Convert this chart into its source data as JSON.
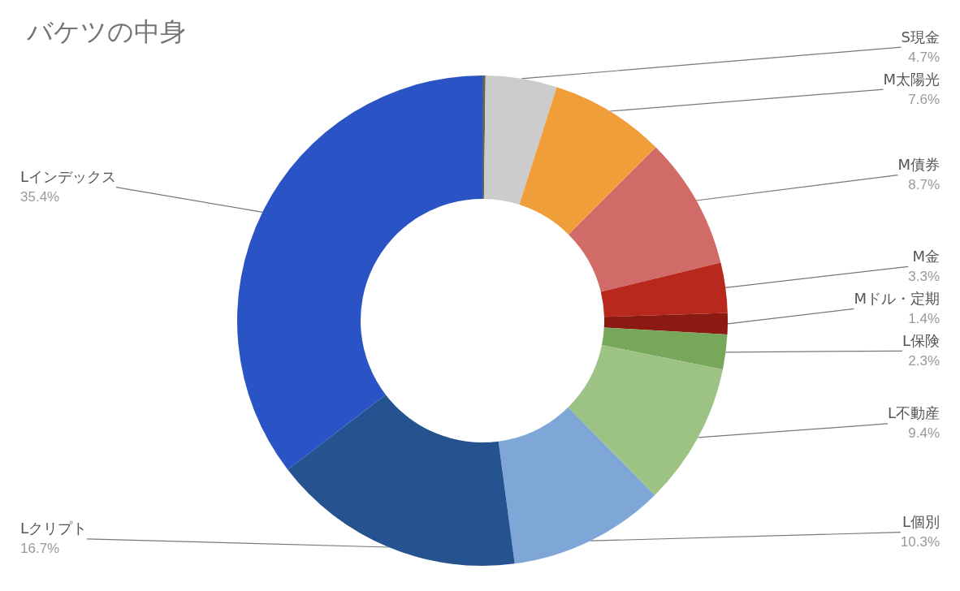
{
  "chart_data": {
    "type": "donut",
    "title": "バケツの中身",
    "categories": [
      null,
      "S現金",
      "M太陽光",
      "M債券",
      "M金",
      "Mドル・定期",
      "L保険",
      "L不動産",
      "L個別",
      "Lクリプト",
      "Lインデックス"
    ],
    "values": [
      0.2,
      4.7,
      7.6,
      8.7,
      3.3,
      1.4,
      2.3,
      9.4,
      10.3,
      16.7,
      35.4
    ],
    "value_labels": [
      null,
      "4.7%",
      "7.6%",
      "8.7%",
      "3.3%",
      "1.4%",
      "2.3%",
      "9.4%",
      "10.3%",
      "16.7%",
      "35.4%"
    ],
    "colors": [
      "#5f6368",
      "#cccccc",
      "#f09e3a",
      "#d16b67",
      "#b9281d",
      "#8b1a12",
      "#76a75a",
      "#9cc384",
      "#7ea7d8",
      "#24538f",
      "#2a54c5"
    ],
    "legend": false
  }
}
